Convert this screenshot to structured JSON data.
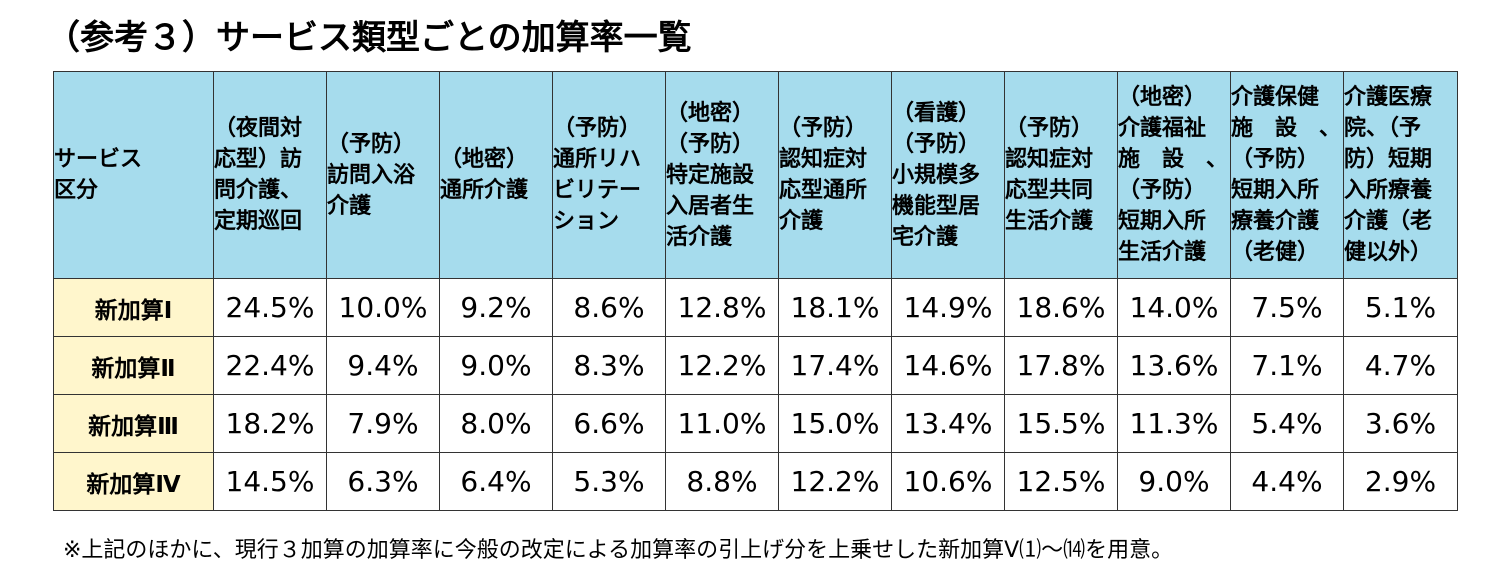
{
  "title": "（参考３）サービス類型ごとの加算率一覧",
  "table": {
    "headers": [
      "サービス\n区分",
      "（夜間対\n応型）訪\n問介護、\n定期巡回",
      "（予防）\n訪問入浴\n介護",
      "（地密）\n通所介護",
      "（予防）\n通所リハ\nビリテー\nション",
      "（地密）\n（予防）\n特定施設\n入居者生\n活介護",
      "（予防）\n認知症対\n応型通所\n介護",
      "（看護）\n（予防）\n小規模多\n機能型居\n宅介護",
      "（予防）\n認知症対\n応型共同\n生活介護",
      "（地密）\n介護福祉\n施　設　、\n（予防）\n短期入所\n生活介護",
      "介護保健\n施　設　、\n（予防）\n短期入所\n療養介護\n（老健）",
      "介護医療\n院、（予\n防）短期\n入所療養\n介護（老\n健以外）"
    ],
    "rows": [
      {
        "label": "新加算Ⅰ",
        "values": [
          "24.5%",
          "10.0%",
          "9.2%",
          "8.6%",
          "12.8%",
          "18.1%",
          "14.9%",
          "18.6%",
          "14.0%",
          "7.5%",
          "5.1%"
        ]
      },
      {
        "label": "新加算Ⅱ",
        "values": [
          "22.4%",
          "9.4%",
          "9.0%",
          "8.3%",
          "12.2%",
          "17.4%",
          "14.6%",
          "17.8%",
          "13.6%",
          "7.1%",
          "4.7%"
        ]
      },
      {
        "label": "新加算Ⅲ",
        "values": [
          "18.2%",
          "7.9%",
          "8.0%",
          "6.6%",
          "11.0%",
          "15.0%",
          "13.4%",
          "15.5%",
          "11.3%",
          "5.4%",
          "3.6%"
        ]
      },
      {
        "label": "新加算Ⅳ",
        "values": [
          "14.5%",
          "6.3%",
          "6.4%",
          "5.3%",
          "8.8%",
          "12.2%",
          "10.6%",
          "12.5%",
          "9.0%",
          "4.4%",
          "2.9%"
        ]
      }
    ]
  },
  "note": "※上記のほかに、現行３加算の加算率に今般の改定による加算率の引上げ分を上乗せした新加算Ⅴ⑴～⒁を用意。",
  "colors": {
    "header_bg": "#a6dced",
    "rowhead_bg": "#fff6cc",
    "border": "#333333"
  }
}
